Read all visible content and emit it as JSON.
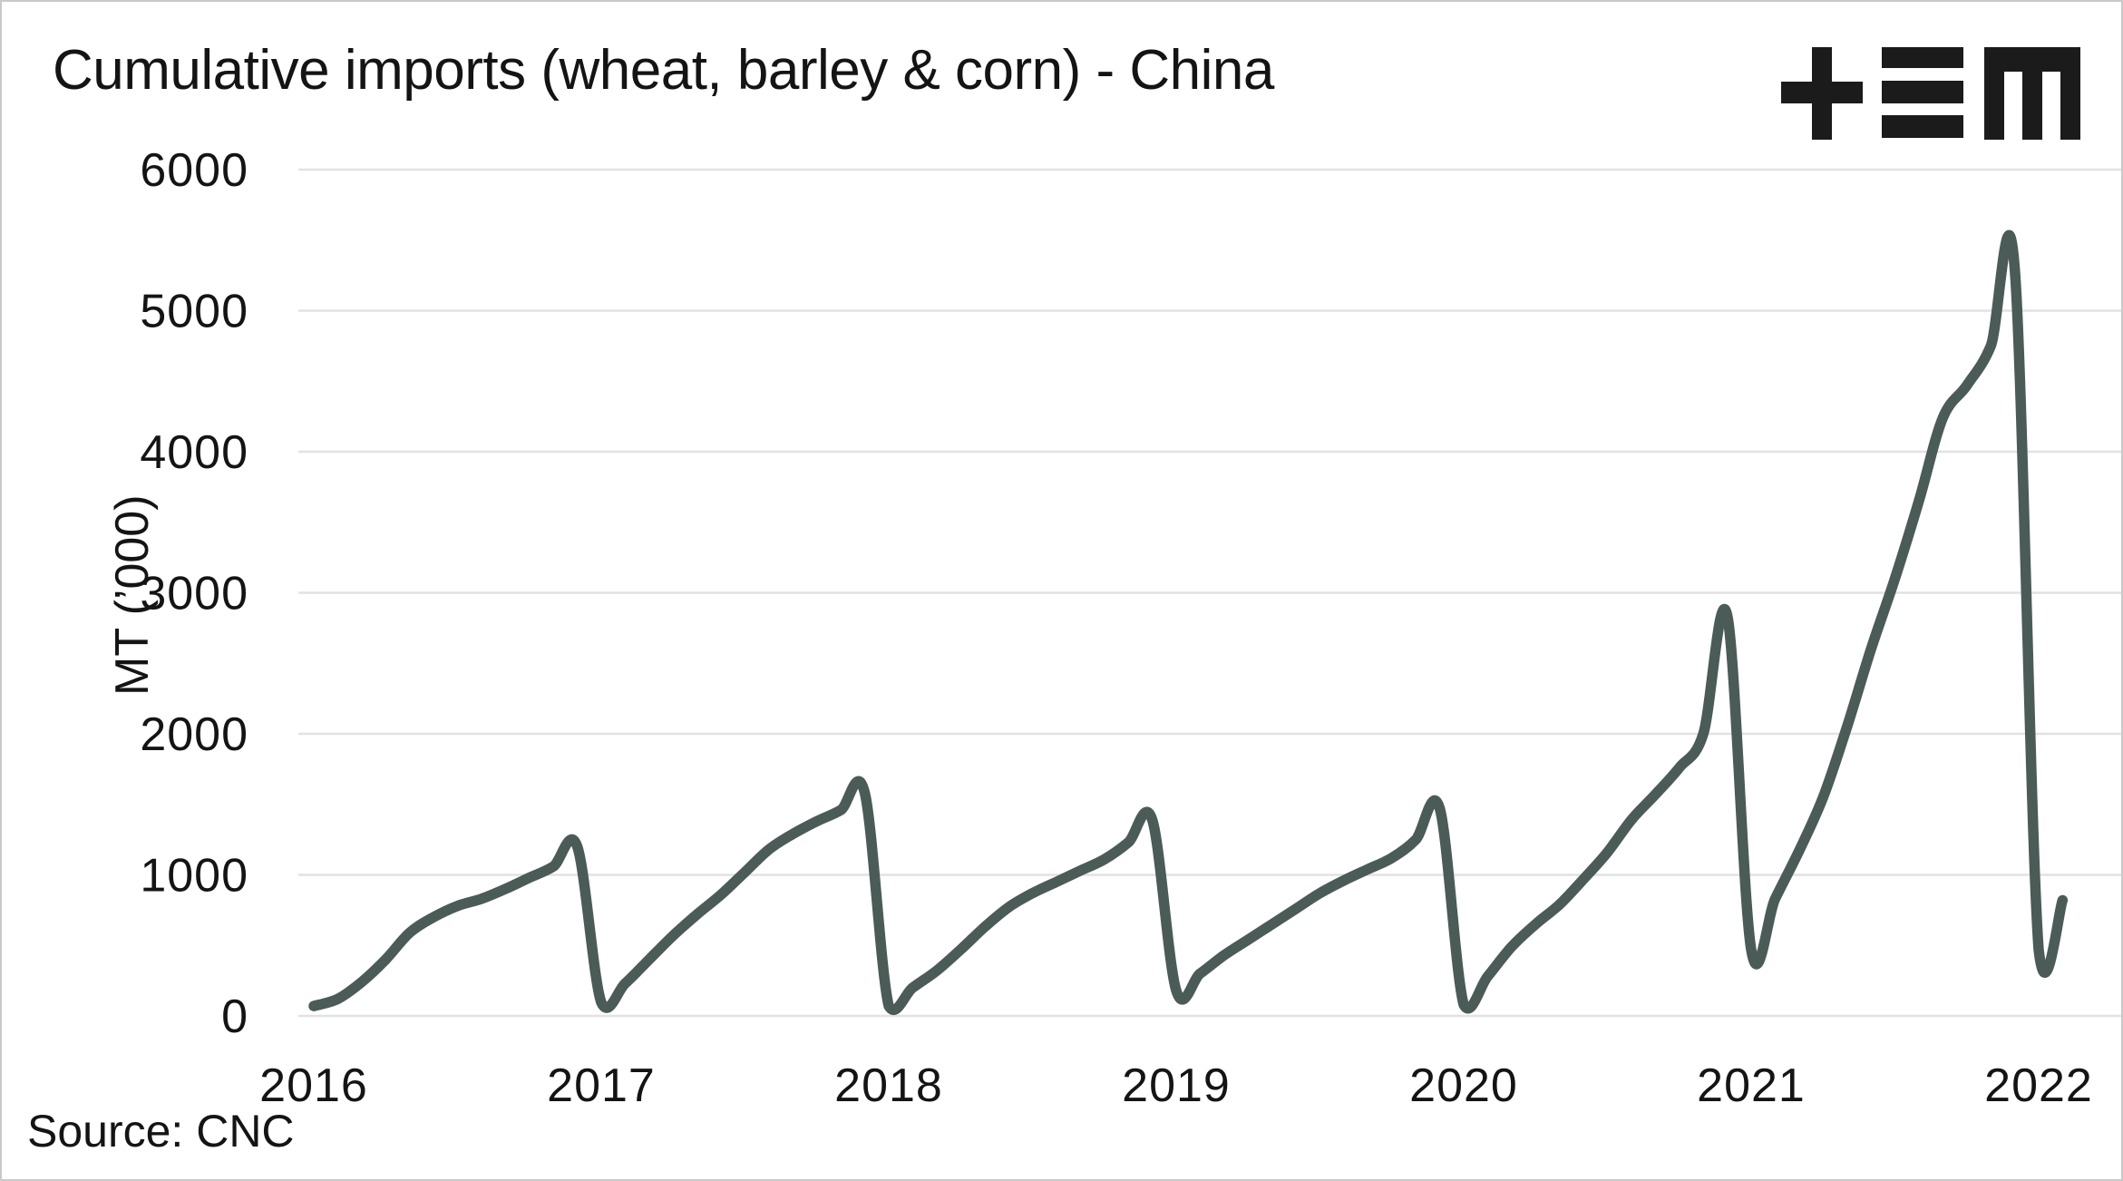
{
  "header": {
    "title": "Cumulative imports (wheat, barley & corn) - China",
    "logo_icon": "plus-three-bars-m",
    "logo_color": "#1b1b1b"
  },
  "footer": {
    "source": "Source: CNC"
  },
  "colors": {
    "line": "#4a5b58",
    "gridline": "#e2e2e2",
    "text": "#141414",
    "background": "#ffffff",
    "frame_border": "#c9c9c9"
  },
  "chart_data": {
    "type": "line",
    "title": "Cumulative imports (wheat, barley & corn) - China",
    "xlabel": "",
    "ylabel": "MT (’000)",
    "source": "Source: CNC",
    "ylim": [
      0,
      6000
    ],
    "y_ticks": [
      0,
      1000,
      2000,
      3000,
      4000,
      5000,
      6000
    ],
    "x_tick_labels": [
      "2016",
      "2017",
      "2018",
      "2019",
      "2020",
      "2021",
      "2022"
    ],
    "grid": "horizontal-only",
    "legend": "none",
    "line_width": 11.5,
    "series": [
      {
        "name": "Cumulative imports (wheat, barley & corn)",
        "unit": "MT ('000)",
        "start": "2016-01",
        "monthly_values_by_year": {
          "2016": [
            70,
            120,
            240,
            400,
            590,
            700,
            780,
            830,
            900,
            980,
            1060,
            1200
          ],
          "2017": [
            95,
            230,
            400,
            570,
            720,
            860,
            1020,
            1180,
            1290,
            1380,
            1460,
            1580
          ],
          "2018": [
            70,
            200,
            320,
            470,
            630,
            770,
            870,
            950,
            1030,
            1110,
            1230,
            1390
          ],
          "2019": [
            180,
            300,
            430,
            540,
            650,
            760,
            870,
            960,
            1040,
            1120,
            1250,
            1470
          ],
          "2020": [
            80,
            280,
            490,
            650,
            790,
            970,
            1160,
            1390,
            1570,
            1760,
            2000,
            2840
          ],
          "2021": [
            470,
            830,
            1170,
            1550,
            2050,
            2600,
            3100,
            3650,
            4240,
            4470,
            4750,
            5300
          ],
          "2022": [
            470,
            820
          ]
        }
      }
    ]
  }
}
